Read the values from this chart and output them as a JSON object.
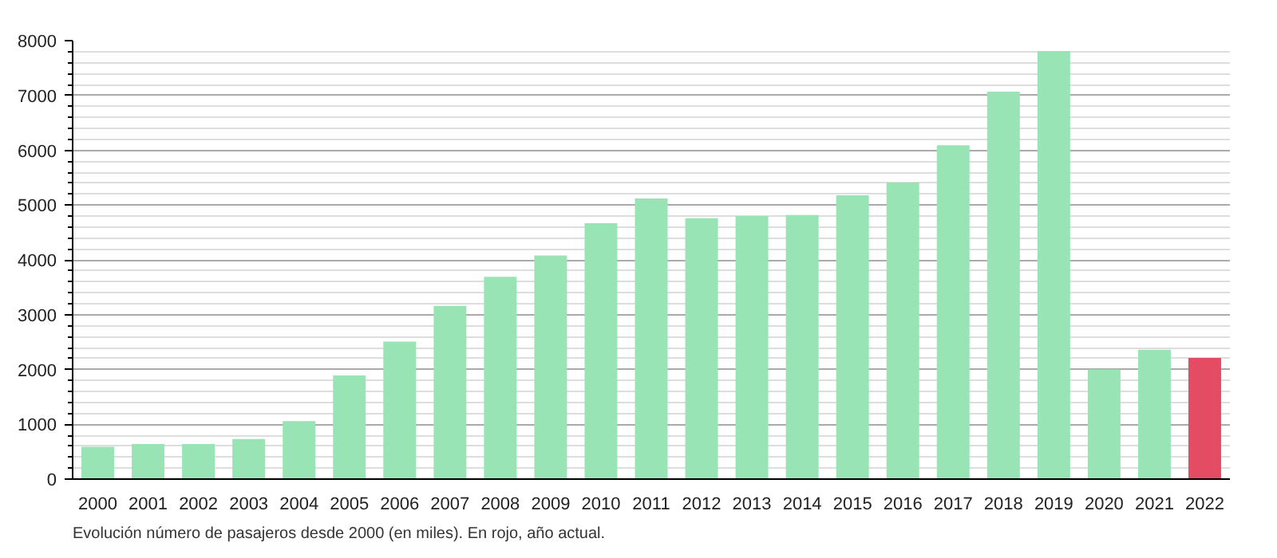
{
  "chart_data": {
    "type": "bar",
    "categories": [
      "2000",
      "2001",
      "2002",
      "2003",
      "2004",
      "2005",
      "2006",
      "2007",
      "2008",
      "2009",
      "2010",
      "2011",
      "2012",
      "2013",
      "2014",
      "2015",
      "2016",
      "2017",
      "2018",
      "2019",
      "2020",
      "2021",
      "2022"
    ],
    "values": [
      590,
      640,
      640,
      730,
      1060,
      1890,
      2510,
      3160,
      3690,
      4080,
      4670,
      5120,
      4760,
      4800,
      4820,
      5180,
      5410,
      6090,
      7070,
      7810,
      2000,
      2360,
      2210
    ],
    "colors": [
      "#98e4b4",
      "#98e4b4",
      "#98e4b4",
      "#98e4b4",
      "#98e4b4",
      "#98e4b4",
      "#98e4b4",
      "#98e4b4",
      "#98e4b4",
      "#98e4b4",
      "#98e4b4",
      "#98e4b4",
      "#98e4b4",
      "#98e4b4",
      "#98e4b4",
      "#98e4b4",
      "#98e4b4",
      "#98e4b4",
      "#98e4b4",
      "#98e4b4",
      "#98e4b4",
      "#98e4b4",
      "#e44c64"
    ],
    "ylim": [
      0,
      8000
    ],
    "yticks": [
      0,
      1000,
      2000,
      3000,
      4000,
      5000,
      6000,
      7000,
      8000
    ],
    "grid": "y",
    "annotations": [
      "Evolución número de pasajeros desde 2000 (en miles). En rojo, año actual."
    ]
  }
}
